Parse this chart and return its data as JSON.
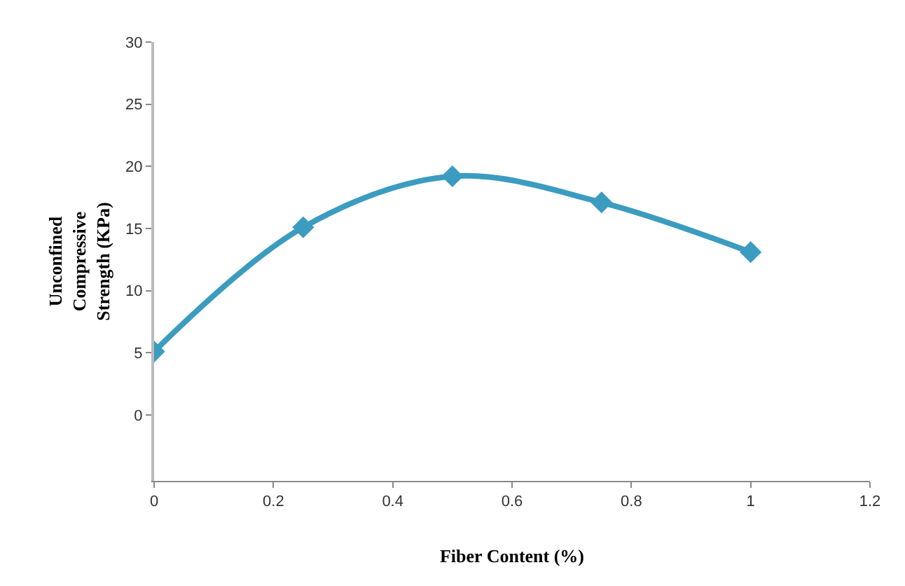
{
  "chart_data": {
    "type": "line",
    "xlabel": "Fiber Content (%)",
    "ylabel": "Unconfined\nCompressive\nStrength (KPa)",
    "x": [
      0,
      0.25,
      0.5,
      0.75,
      1
    ],
    "series": [
      {
        "color": "#3b9cc0",
        "values": [
          5.1,
          15.1,
          19.2,
          17.1,
          13.1
        ]
      }
    ],
    "xlim": [
      0,
      1.2
    ],
    "xticks": [
      0,
      0.2,
      0.4,
      0.6,
      0.8,
      1,
      1.2
    ],
    "ylim": [
      -5.3,
      30
    ],
    "yticks": [
      0,
      5,
      10,
      15,
      20,
      25,
      30
    ],
    "marker": "diamond",
    "line_style": "solid"
  }
}
